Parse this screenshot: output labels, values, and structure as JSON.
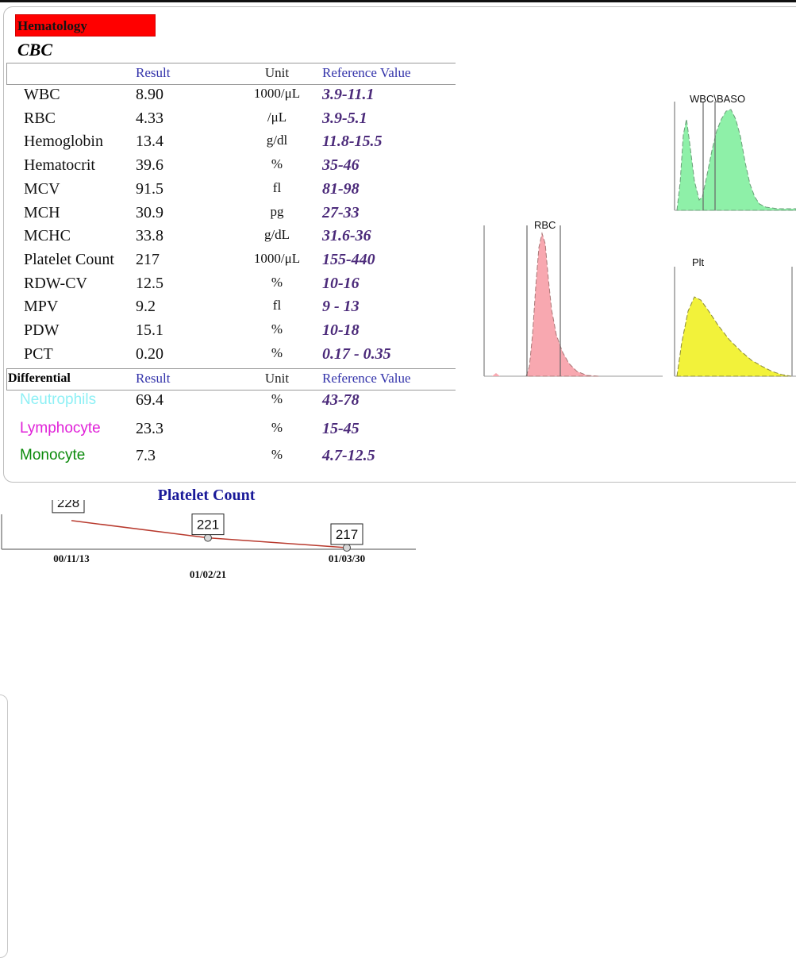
{
  "section": "Hematology",
  "panel_title": "CBC",
  "headers": {
    "result": "Result",
    "unit": "Unit",
    "reference": "Reference Value"
  },
  "cbc_rows": [
    {
      "name": "WBC",
      "result": "8.90",
      "unit": "1000/μL",
      "reference": "3.9-11.1"
    },
    {
      "name": "RBC",
      "result": "4.33",
      "unit": "/μL",
      "reference": "3.9-5.1"
    },
    {
      "name": "Hemoglobin",
      "result": "13.4",
      "unit": "g/dl",
      "reference": "11.8-15.5"
    },
    {
      "name": "Hematocrit",
      "result": "39.6",
      "unit": "%",
      "reference": "35-46"
    },
    {
      "name": "MCV",
      "result": "91.5",
      "unit": "fl",
      "reference": "81-98"
    },
    {
      "name": "MCH",
      "result": "30.9",
      "unit": "pg",
      "reference": "27-33"
    },
    {
      "name": "MCHC",
      "result": "33.8",
      "unit": "g/dL",
      "reference": "31.6-36"
    },
    {
      "name": "Platelet Count",
      "result": "217",
      "unit": "1000/μL",
      "reference": "155-440"
    },
    {
      "name": "RDW-CV",
      "result": "12.5",
      "unit": "%",
      "reference": "10-16"
    },
    {
      "name": "MPV",
      "result": "9.2",
      "unit": "fl",
      "reference": "9 - 13"
    },
    {
      "name": "PDW",
      "result": "15.1",
      "unit": "%",
      "reference": "10-18"
    },
    {
      "name": "PCT",
      "result": "0.20",
      "unit": "%",
      "reference": "0.17 - 0.35"
    }
  ],
  "differential": {
    "label": "Differential",
    "rows": [
      {
        "name": "Neutrophils",
        "result": "69.4",
        "unit": "%",
        "reference": "43-78",
        "color": "#8ff0f5"
      },
      {
        "name": "Lymphocyte",
        "result": "23.3",
        "unit": "%",
        "reference": "15-45",
        "color": "#e020d8"
      },
      {
        "name": "Monocyte",
        "result": "7.3",
        "unit": "%",
        "reference": "4.7-12.5",
        "color": "#0a8a0a"
      }
    ]
  },
  "histograms": {
    "wbc_baso": {
      "label": "WBC\\BASO",
      "color": "#8ef0a8"
    },
    "rbc": {
      "label": "RBC",
      "color": "#f8a8b0"
    },
    "plt": {
      "label": "Plt",
      "color": "#f2f23a"
    }
  },
  "trend": {
    "title": "Platelet Count",
    "points": [
      {
        "date": "00/11/13",
        "value": 228
      },
      {
        "date": "01/02/21",
        "value": 221
      },
      {
        "date": "01/03/30",
        "value": 217
      }
    ],
    "line_color": "#b83a2e"
  }
}
